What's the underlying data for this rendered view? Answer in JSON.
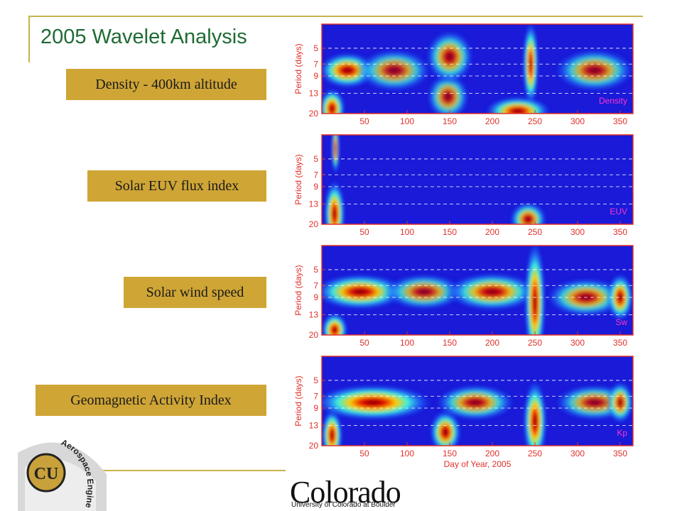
{
  "slide": {
    "title": "2005 Wavelet Analysis",
    "labels": [
      "Density - 400km altitude",
      "Solar EUV flux index",
      "Solar wind speed",
      "Geomagnetic Activity Index"
    ],
    "logo_text": "Colorado",
    "logo_subtext": "University of Colorado at Boulder",
    "emblem_text": "Aerospace Engineering",
    "emblem_letters": "CU",
    "colors": {
      "title": "#1f6b34",
      "label_bg": "#cfa535",
      "frame": "#c9b24a",
      "plot_border": "#e0302a",
      "axis_text": "#e0302a"
    }
  },
  "chart_data": [
    {
      "type": "heatmap",
      "panel_label": "Density",
      "ylabel": "Period (days)",
      "xlabel": "",
      "yticks": [
        5,
        7,
        9,
        13,
        20
      ],
      "xticks": [
        50,
        100,
        150,
        200,
        250,
        300,
        350
      ],
      "xlim": [
        0,
        365
      ],
      "ylim": [
        3,
        20
      ],
      "dashed_periods": [
        5,
        7,
        9,
        13
      ],
      "features": [
        {
          "day": 12,
          "period": 18,
          "intensity": 1.0,
          "sd": 10,
          "sp": 4
        },
        {
          "day": 30,
          "period": 8,
          "intensity": 0.9,
          "sd": 22,
          "sp": 1.2
        },
        {
          "day": 85,
          "period": 8,
          "intensity": 0.55,
          "sd": 28,
          "sp": 1.5
        },
        {
          "day": 148,
          "period": 14,
          "intensity": 0.6,
          "sd": 16,
          "sp": 3
        },
        {
          "day": 150,
          "period": 6,
          "intensity": 0.7,
          "sd": 18,
          "sp": 1.5
        },
        {
          "day": 245,
          "period": 7,
          "intensity": 1.0,
          "sd": 6,
          "sp": 3
        },
        {
          "day": 230,
          "period": 19,
          "intensity": 0.9,
          "sd": 25,
          "sp": 3
        },
        {
          "day": 320,
          "period": 8,
          "intensity": 0.6,
          "sd": 30,
          "sp": 1.5
        }
      ]
    },
    {
      "type": "heatmap",
      "panel_label": "EUV",
      "ylabel": "Period (days)",
      "xlabel": "",
      "yticks": [
        5,
        7,
        9,
        13,
        20
      ],
      "xticks": [
        50,
        100,
        150,
        200,
        250,
        300,
        350
      ],
      "xlim": [
        0,
        365
      ],
      "ylim": [
        3,
        20
      ],
      "dashed_periods": [
        5,
        7,
        9,
        13
      ],
      "features": [
        {
          "day": 15,
          "period": 16,
          "intensity": 1.0,
          "sd": 8,
          "sp": 6
        },
        {
          "day": 16,
          "period": 4,
          "intensity": 0.8,
          "sd": 3,
          "sp": 1
        },
        {
          "day": 242,
          "period": 18,
          "intensity": 0.8,
          "sd": 14,
          "sp": 3
        }
      ]
    },
    {
      "type": "heatmap",
      "panel_label": "Sw",
      "ylabel": "Period (days)",
      "xlabel": "",
      "yticks": [
        5,
        7,
        9,
        13,
        20
      ],
      "xticks": [
        50,
        100,
        150,
        200,
        250,
        300,
        350
      ],
      "xlim": [
        0,
        365
      ],
      "ylim": [
        3,
        20
      ],
      "dashed_periods": [
        5,
        7,
        9,
        13
      ],
      "features": [
        {
          "day": 15,
          "period": 18,
          "intensity": 1.0,
          "sd": 10,
          "sp": 3
        },
        {
          "day": 45,
          "period": 8,
          "intensity": 0.9,
          "sd": 35,
          "sp": 1.2
        },
        {
          "day": 120,
          "period": 8,
          "intensity": 0.6,
          "sd": 30,
          "sp": 1.2
        },
        {
          "day": 200,
          "period": 8,
          "intensity": 0.8,
          "sd": 35,
          "sp": 1.3
        },
        {
          "day": 250,
          "period": 10,
          "intensity": 1.0,
          "sd": 8,
          "sp": 6
        },
        {
          "day": 310,
          "period": 9,
          "intensity": 0.7,
          "sd": 30,
          "sp": 1.5
        },
        {
          "day": 350,
          "period": 9,
          "intensity": 0.9,
          "sd": 10,
          "sp": 2
        }
      ]
    },
    {
      "type": "heatmap",
      "panel_label": "Kp",
      "ylabel": "Period (days)",
      "xlabel": "Day of Year, 2005",
      "yticks": [
        5,
        7,
        9,
        13,
        20
      ],
      "xticks": [
        50,
        100,
        150,
        200,
        250,
        300,
        350
      ],
      "xlim": [
        0,
        365
      ],
      "ylim": [
        3,
        20
      ],
      "dashed_periods": [
        5,
        7,
        9,
        13
      ],
      "features": [
        {
          "day": 12,
          "period": 16,
          "intensity": 1.0,
          "sd": 8,
          "sp": 4
        },
        {
          "day": 60,
          "period": 8,
          "intensity": 1.0,
          "sd": 45,
          "sp": 1.2
        },
        {
          "day": 145,
          "period": 15,
          "intensity": 0.9,
          "sd": 12,
          "sp": 3
        },
        {
          "day": 180,
          "period": 8,
          "intensity": 0.7,
          "sd": 30,
          "sp": 1.2
        },
        {
          "day": 250,
          "period": 12,
          "intensity": 1.0,
          "sd": 9,
          "sp": 5
        },
        {
          "day": 320,
          "period": 8,
          "intensity": 0.6,
          "sd": 30,
          "sp": 1.2
        },
        {
          "day": 350,
          "period": 8,
          "intensity": 0.8,
          "sd": 10,
          "sp": 1.5
        }
      ]
    }
  ]
}
